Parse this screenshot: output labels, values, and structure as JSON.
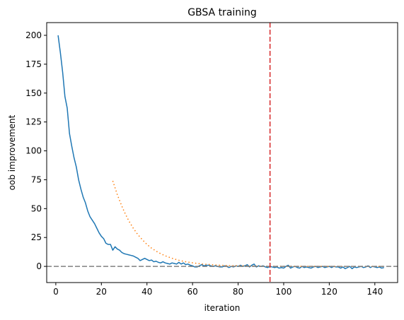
{
  "chart_data": {
    "type": "line",
    "title": "GBSA training",
    "xlabel": "iteration",
    "ylabel": "oob improvement",
    "xlim": [
      -4,
      150
    ],
    "ylim": [
      -14,
      211
    ],
    "xticks": [
      0,
      20,
      40,
      60,
      80,
      100,
      120,
      140
    ],
    "yticks": [
      0,
      25,
      50,
      75,
      100,
      125,
      150,
      175,
      200
    ],
    "grid": false,
    "legend": "none",
    "series": [
      {
        "style": "solid",
        "color": "#1f77b4",
        "x": [
          1,
          2,
          3,
          4,
          5,
          6,
          7,
          8,
          9,
          10,
          11,
          12,
          13,
          14,
          15,
          16,
          17,
          18,
          19,
          20,
          21,
          22,
          23,
          24,
          25,
          26,
          27,
          28,
          29,
          30,
          31,
          32,
          33,
          34,
          35,
          36,
          37,
          38,
          39,
          40,
          41,
          42,
          43,
          44,
          45,
          46,
          47,
          48,
          49,
          50,
          51,
          52,
          53,
          54,
          55,
          56,
          57,
          58,
          59,
          60,
          61,
          62,
          63,
          64,
          65,
          66,
          67,
          68,
          69,
          70,
          71,
          72,
          73,
          74,
          75,
          76,
          77,
          78,
          79,
          80,
          81,
          82,
          83,
          84,
          85,
          86,
          87,
          88,
          89,
          90,
          91,
          92,
          93,
          94,
          95,
          96,
          97,
          98,
          99,
          100,
          101,
          102,
          103,
          104,
          105,
          106,
          107,
          108,
          109,
          110,
          111,
          112,
          113,
          114,
          115,
          116,
          117,
          118,
          119,
          120,
          121,
          122,
          123,
          124,
          125,
          126,
          127,
          128,
          129,
          130,
          131,
          132,
          133,
          134,
          135,
          136,
          137,
          138,
          139,
          140,
          141,
          142,
          143,
          144
        ],
        "y": [
          200,
          185,
          168,
          147,
          137,
          115,
          104,
          94,
          86,
          75,
          67,
          60,
          55,
          48,
          43,
          40,
          37,
          33,
          29,
          26,
          24,
          20,
          19,
          19,
          14,
          17,
          15,
          14,
          12,
          11,
          10.5,
          10,
          9.5,
          9,
          8,
          7,
          5,
          6,
          7,
          6,
          5,
          5.5,
          4,
          4.5,
          3.5,
          3,
          4,
          3,
          2.5,
          2,
          3,
          2.5,
          2,
          3.5,
          2,
          3,
          1.5,
          2,
          1,
          0.5,
          -0.5,
          -0.5,
          0.5,
          1.5,
          0.5,
          1,
          1,
          0.5,
          0,
          0.5,
          0,
          -0.5,
          -0.5,
          0.5,
          0,
          -1,
          0,
          -0.5,
          0.5,
          0,
          1,
          0,
          0.5,
          1.5,
          -0.5,
          1,
          2,
          -0.5,
          0.5,
          0,
          0.5,
          -0.5,
          -1,
          0,
          -0.5,
          -1,
          -0.5,
          -1.5,
          -1,
          -1.5,
          0,
          1,
          -1.5,
          -0.5,
          0,
          -1,
          -1.5,
          0,
          -1,
          -0.5,
          -1,
          -1.5,
          -0.5,
          0,
          -1,
          -0.5,
          0,
          -1,
          -0.5,
          0,
          -1,
          0,
          -0.5,
          -0.5,
          -1.5,
          -0.5,
          -2,
          -1,
          0,
          -2,
          -0.5,
          -1,
          -0.5,
          0,
          -1,
          -0.5,
          0.5,
          -1,
          0,
          -0.5,
          -1,
          -0.5,
          -1.5,
          -1
        ]
      },
      {
        "style": "dotted",
        "color": "#ff7f0e",
        "x": [
          25,
          26,
          27,
          28,
          29,
          30,
          32,
          34,
          36,
          38,
          40,
          42,
          44,
          46,
          48,
          50,
          52,
          54,
          56,
          58,
          60,
          62,
          64,
          66,
          68,
          70,
          72,
          74,
          76,
          78,
          80,
          84,
          88,
          92,
          96,
          100,
          104,
          108,
          112,
          116,
          120,
          124,
          128,
          132,
          136,
          140,
          144
        ],
        "y": [
          74,
          68,
          62,
          57,
          52,
          47.5,
          39.5,
          33,
          27.5,
          23,
          19,
          15.8,
          13.2,
          11,
          9.2,
          7.7,
          6.4,
          5.3,
          4.4,
          3.7,
          3.1,
          2.6,
          2.1,
          1.8,
          1.5,
          1.2,
          1,
          0.85,
          0.7,
          0.6,
          0.5,
          0.35,
          0.25,
          0.18,
          0.13,
          0.1,
          0.07,
          0.05,
          0.04,
          0.03,
          0.02,
          0.015,
          0.01,
          0.008,
          0.006,
          0.004,
          0.003
        ]
      }
    ],
    "reference_lines": [
      {
        "orientation": "horizontal",
        "value": 0,
        "style": "dashed",
        "color": "#808080"
      },
      {
        "orientation": "vertical",
        "value": 94,
        "style": "dashed",
        "color": "#d62728"
      }
    ]
  }
}
